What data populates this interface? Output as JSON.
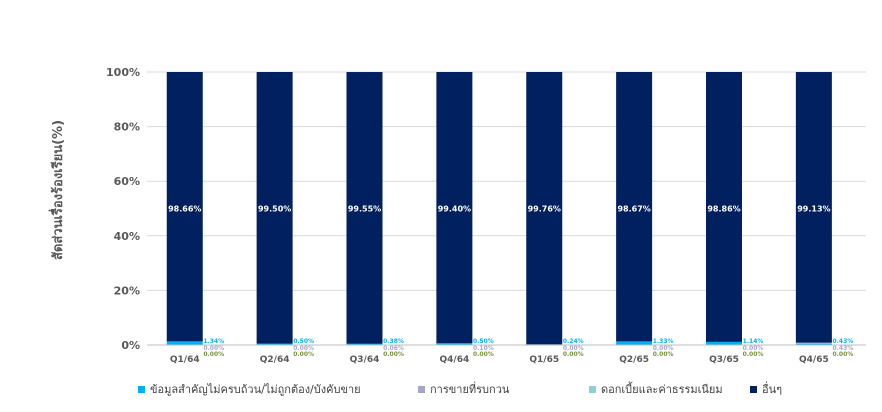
{
  "chart_data": {
    "type": "bar",
    "stacked": true,
    "ylabel": "สัดส่วนเรื่องร้องเรียน(%)",
    "ylim": [
      0,
      100
    ],
    "yticks": [
      "0%",
      "20%",
      "40%",
      "60%",
      "80%",
      "100%"
    ],
    "categories": [
      "Q1/64",
      "Q2/64",
      "Q3/64",
      "Q4/64",
      "Q1/65",
      "Q2/65",
      "Q3/65",
      "Q4/65"
    ],
    "series": [
      {
        "name": "ข้อมูลสำคัญไม่ครบถ้วน/ไม่ถูกต้อง/บังคับขาย",
        "color": "#00b0f0",
        "values": [
          1.34,
          0.5,
          0.38,
          0.5,
          0.24,
          1.33,
          1.14,
          0.43
        ],
        "labels": [
          "1.34%",
          "0.50%",
          "0.38%",
          "0.50%",
          "0.24%",
          "1.33%",
          "1.14%",
          "0.43%"
        ]
      },
      {
        "name": "การขายที่รบกวน",
        "color": "#a6a6c8",
        "values": [
          0.0,
          0.0,
          0.06,
          0.1,
          0.0,
          0.0,
          0.0,
          0.43
        ],
        "labels": [
          "0.00%",
          "0.00%",
          "0.06%",
          "0.10%",
          "0.00%",
          "0.00%",
          "0.00%",
          "0.43%"
        ]
      },
      {
        "name": "ดอกเบี้ยและค่าธรรมเนียม",
        "color": "#92cddc",
        "values": [
          0.0,
          0.0,
          0.0,
          0.0,
          0.0,
          0.0,
          0.0,
          0.0
        ],
        "labels": [
          "0.00%",
          "0.00%",
          "0.00%",
          "0.00%",
          "0.00%",
          "0.00%",
          "0.00%",
          "0.00%"
        ]
      },
      {
        "name": "อื่นๆ",
        "color": "#002060",
        "values": [
          98.66,
          99.5,
          99.55,
          99.4,
          99.76,
          98.67,
          98.86,
          99.13
        ],
        "labels": [
          "98.66%",
          "99.50%",
          "99.55%",
          "99.40%",
          "99.76%",
          "98.67%",
          "98.86%",
          "99.13%"
        ]
      }
    ],
    "label_colors": [
      "#00b0f0",
      "#a6a6c8",
      "#76923c"
    ],
    "grid": true,
    "legend_position": "bottom"
  }
}
